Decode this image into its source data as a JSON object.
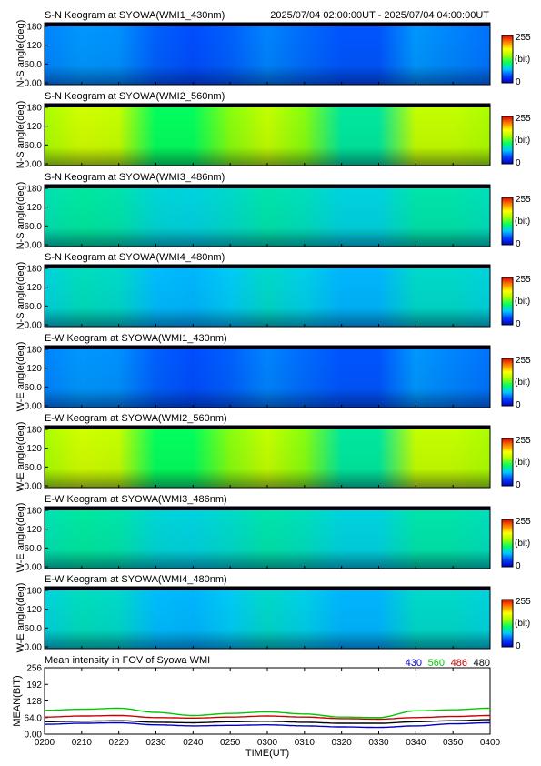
{
  "header": {
    "time_range": "2025/07/04 02:00:00UT - 2025/07/04 04:00:00UT"
  },
  "colorbar": {
    "max_label": "255",
    "unit_label": "(bit)",
    "min_label": "0",
    "colors": [
      "#0000c8",
      "#0040ff",
      "#00c8ff",
      "#00ff60",
      "#a0ff00",
      "#ffff00",
      "#ff8000",
      "#e00000"
    ]
  },
  "panel_colors": {
    "frame": "#000000",
    "top_band": "#000010"
  },
  "chart_data": [
    {
      "type": "heatmap",
      "title": "S-N Keogram at SYOWA(WMI1_430nm)",
      "ylabel": "N-S angle(deg)",
      "ytick_labels": [
        "180",
        "120",
        "60.0",
        "0.00"
      ],
      "ylim": [
        0,
        180
      ],
      "x": [
        "0200",
        "0210",
        "0220",
        "0230",
        "0240",
        "0250",
        "0300",
        "0310",
        "0320",
        "0330",
        "0340",
        "0350",
        "0400"
      ],
      "values": [
        55,
        60,
        58,
        45,
        40,
        45,
        55,
        48,
        42,
        42,
        60,
        55,
        50
      ],
      "clim": [
        0,
        255
      ]
    },
    {
      "type": "heatmap",
      "title": "S-N Keogram at SYOWA(WMI2_560nm)",
      "ylabel": "N-S angle(deg)",
      "ytick_labels": [
        "180",
        "120",
        "60.0",
        "0.00"
      ],
      "ylim": [
        0,
        180
      ],
      "x": [
        "0200",
        "0210",
        "0220",
        "0230",
        "0240",
        "0250",
        "0300",
        "0310",
        "0320",
        "0330",
        "0340",
        "0350",
        "0400"
      ],
      "values": [
        150,
        165,
        160,
        110,
        110,
        140,
        160,
        140,
        95,
        95,
        160,
        160,
        150
      ],
      "clim": [
        0,
        255
      ]
    },
    {
      "type": "heatmap",
      "title": "S-N Keogram at SYOWA(WMI3_486nm)",
      "ylabel": "N-S angle(deg)",
      "ytick_labels": [
        "180",
        "120",
        "60.0",
        "0.00"
      ],
      "ylim": [
        0,
        180
      ],
      "x": [
        "0200",
        "0210",
        "0220",
        "0230",
        "0240",
        "0250",
        "0300",
        "0310",
        "0320",
        "0330",
        "0340",
        "0350",
        "0400"
      ],
      "values": [
        90,
        95,
        92,
        82,
        80,
        85,
        92,
        88,
        80,
        80,
        92,
        92,
        88
      ],
      "clim": [
        0,
        255
      ]
    },
    {
      "type": "heatmap",
      "title": "S-N Keogram at SYOWA(WMI4_480nm)",
      "ylabel": "N-S angle(deg)",
      "ytick_labels": [
        "180",
        "120",
        "60.0",
        "0.00"
      ],
      "ylim": [
        0,
        180
      ],
      "x": [
        "0200",
        "0210",
        "0220",
        "0230",
        "0240",
        "0250",
        "0300",
        "0310",
        "0320",
        "0330",
        "0340",
        "0350",
        "0400"
      ],
      "values": [
        80,
        88,
        85,
        70,
        68,
        75,
        85,
        78,
        68,
        68,
        85,
        85,
        80
      ],
      "clim": [
        0,
        255
      ]
    },
    {
      "type": "heatmap",
      "title": "E-W Keogram at SYOWA(WMI1_430nm)",
      "ylabel": "W-E angle(deg)",
      "ytick_labels": [
        "180",
        "120",
        "60.0",
        "0.00"
      ],
      "ylim": [
        0,
        180
      ],
      "x": [
        "0200",
        "0210",
        "0220",
        "0230",
        "0240",
        "0250",
        "0300",
        "0310",
        "0320",
        "0330",
        "0340",
        "0350",
        "0400"
      ],
      "values": [
        55,
        60,
        58,
        45,
        40,
        45,
        55,
        48,
        42,
        42,
        60,
        55,
        50
      ],
      "clim": [
        0,
        255
      ]
    },
    {
      "type": "heatmap",
      "title": "E-W Keogram at SYOWA(WMI2_560nm)",
      "ylabel": "W-E angle(deg)",
      "ytick_labels": [
        "180",
        "120",
        "60.0",
        "0.00"
      ],
      "ylim": [
        0,
        180
      ],
      "x": [
        "0200",
        "0210",
        "0220",
        "0230",
        "0240",
        "0250",
        "0300",
        "0310",
        "0320",
        "0330",
        "0340",
        "0350",
        "0400"
      ],
      "values": [
        150,
        165,
        160,
        110,
        110,
        140,
        160,
        140,
        95,
        95,
        160,
        160,
        150
      ],
      "clim": [
        0,
        255
      ]
    },
    {
      "type": "heatmap",
      "title": "E-W Keogram at SYOWA(WMI3_486nm)",
      "ylabel": "W-E angle(deg)",
      "ytick_labels": [
        "180",
        "120",
        "60.0",
        "0.00"
      ],
      "ylim": [
        0,
        180
      ],
      "x": [
        "0200",
        "0210",
        "0220",
        "0230",
        "0240",
        "0250",
        "0300",
        "0310",
        "0320",
        "0330",
        "0340",
        "0350",
        "0400"
      ],
      "values": [
        90,
        95,
        92,
        82,
        80,
        85,
        92,
        88,
        80,
        80,
        92,
        92,
        88
      ],
      "clim": [
        0,
        255
      ]
    },
    {
      "type": "heatmap",
      "title": "E-W Keogram at SYOWA(WMI4_480nm)",
      "ylabel": "W-E angle(deg)",
      "ytick_labels": [
        "180",
        "120",
        "60.0",
        "0.00"
      ],
      "ylim": [
        0,
        180
      ],
      "x": [
        "0200",
        "0210",
        "0220",
        "0230",
        "0240",
        "0250",
        "0300",
        "0310",
        "0320",
        "0330",
        "0340",
        "0350",
        "0400"
      ],
      "values": [
        80,
        88,
        85,
        70,
        68,
        75,
        85,
        78,
        68,
        68,
        85,
        85,
        80
      ],
      "clim": [
        0,
        255
      ]
    },
    {
      "type": "line",
      "title": "Mean intensity in FOV of Syowa WMI",
      "ylabel": "MEAN(BIT)",
      "xlabel": "TIME(UT)",
      "ytick_labels": [
        "256",
        "192",
        "128",
        "64.0",
        "0.00"
      ],
      "ylim": [
        0,
        256
      ],
      "x_ticks": [
        "0200",
        "0210",
        "0220",
        "0230",
        "0240",
        "0250",
        "0300",
        "0310",
        "0320",
        "0330",
        "0340",
        "0350",
        "0400"
      ],
      "x": [
        0,
        10,
        20,
        30,
        40,
        50,
        60,
        70,
        80,
        90,
        100,
        110,
        120
      ],
      "series": [
        {
          "name": "430",
          "color": "#0000c8",
          "values": [
            38,
            42,
            44,
            36,
            32,
            34,
            36,
            32,
            28,
            26,
            32,
            40,
            44
          ]
        },
        {
          "name": "560",
          "color": "#00c800",
          "values": [
            92,
            96,
            100,
            84,
            72,
            80,
            86,
            78,
            66,
            64,
            90,
            94,
            100
          ]
        },
        {
          "name": "486",
          "color": "#c80000",
          "values": [
            66,
            70,
            72,
            64,
            62,
            66,
            70,
            66,
            60,
            58,
            64,
            68,
            72
          ]
        },
        {
          "name": "480",
          "color": "#000000",
          "values": [
            48,
            50,
            52,
            46,
            44,
            48,
            50,
            46,
            42,
            42,
            48,
            52,
            56
          ]
        }
      ]
    }
  ]
}
